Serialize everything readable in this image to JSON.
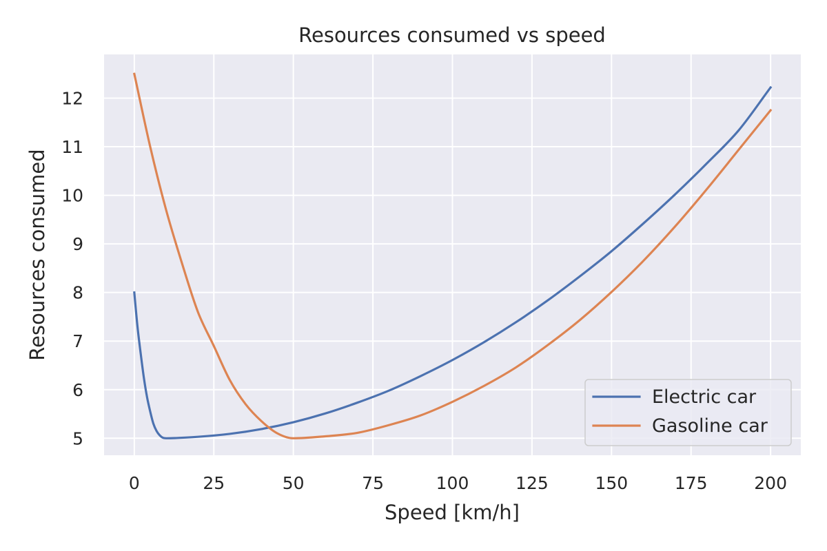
{
  "chart_data": {
    "type": "line",
    "title": "Resources consumed vs speed",
    "xlabel": "Speed [km/h]",
    "ylabel": "Resources consumed",
    "xlim": [
      -9.5,
      209.5
    ],
    "ylim": [
      4.65,
      12.9
    ],
    "xticks": [
      0,
      25,
      50,
      75,
      100,
      125,
      150,
      175,
      200
    ],
    "yticks": [
      5,
      6,
      7,
      8,
      9,
      10,
      11,
      12
    ],
    "grid": true,
    "legend_position": "lower-right",
    "background_color": "#eaeaf2",
    "grid_color": "#ffffff",
    "series": [
      {
        "name": "Electric car",
        "color": "#4c72b0",
        "points": [
          [
            0,
            8.0
          ],
          [
            1,
            7.3
          ],
          [
            2,
            6.75
          ],
          [
            3,
            6.25
          ],
          [
            4,
            5.85
          ],
          [
            5,
            5.55
          ],
          [
            6,
            5.3
          ],
          [
            7,
            5.15
          ],
          [
            8,
            5.06
          ],
          [
            9,
            5.01
          ],
          [
            10,
            5.0
          ],
          [
            20,
            5.03
          ],
          [
            30,
            5.09
          ],
          [
            40,
            5.19
          ],
          [
            50,
            5.33
          ],
          [
            60,
            5.51
          ],
          [
            70,
            5.73
          ],
          [
            80,
            5.98
          ],
          [
            90,
            6.28
          ],
          [
            100,
            6.61
          ],
          [
            110,
            6.98
          ],
          [
            120,
            7.39
          ],
          [
            130,
            7.84
          ],
          [
            140,
            8.33
          ],
          [
            150,
            8.85
          ],
          [
            160,
            9.42
          ],
          [
            170,
            10.02
          ],
          [
            180,
            10.66
          ],
          [
            190,
            11.34
          ],
          [
            200,
            12.22
          ]
        ]
      },
      {
        "name": "Gasoline car",
        "color": "#dd8452",
        "points": [
          [
            0,
            12.5
          ],
          [
            5,
            11.0
          ],
          [
            10,
            9.7
          ],
          [
            15,
            8.6
          ],
          [
            20,
            7.6
          ],
          [
            25,
            6.9
          ],
          [
            30,
            6.2
          ],
          [
            35,
            5.7
          ],
          [
            40,
            5.35
          ],
          [
            45,
            5.1
          ],
          [
            50,
            5.0
          ],
          [
            60,
            5.04
          ],
          [
            70,
            5.11
          ],
          [
            80,
            5.27
          ],
          [
            90,
            5.47
          ],
          [
            100,
            5.75
          ],
          [
            110,
            6.08
          ],
          [
            120,
            6.46
          ],
          [
            130,
            6.92
          ],
          [
            140,
            7.43
          ],
          [
            150,
            8.01
          ],
          [
            160,
            8.65
          ],
          [
            170,
            9.36
          ],
          [
            180,
            10.13
          ],
          [
            190,
            10.94
          ],
          [
            200,
            11.75
          ]
        ]
      }
    ]
  }
}
